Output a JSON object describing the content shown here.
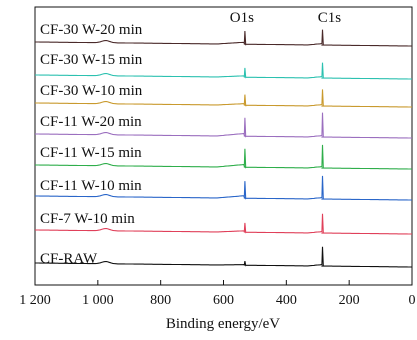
{
  "chart_data": {
    "type": "line",
    "title": "",
    "xlabel": "Binding energy/eV",
    "ylabel": "",
    "xlim": [
      1200,
      0
    ],
    "x_reversed": true,
    "grid": false,
    "x_ticks": [
      1200,
      1000,
      800,
      600,
      400,
      200,
      0
    ],
    "x_tick_labels": [
      "1 200",
      "1 000",
      "800",
      "600",
      "400",
      "200",
      "0"
    ],
    "annotations": [
      {
        "text": "O1s",
        "x": 532
      },
      {
        "text": "C1s",
        "x": 285
      }
    ],
    "series": [
      {
        "name": "CF-30 W-20 min",
        "color": "#4a2a2a",
        "c1s_peak": 0.55,
        "o1s_peak": 0.5
      },
      {
        "name": "CF-30 W-15 min",
        "color": "#2cc1b0",
        "c1s_peak": 0.55,
        "o1s_peak": 0.35
      },
      {
        "name": "CF-30 W-10 min",
        "color": "#c99a2e",
        "c1s_peak": 0.6,
        "o1s_peak": 0.4
      },
      {
        "name": "CF-11 W-20 min",
        "color": "#9b6fbf",
        "c1s_peak": 0.9,
        "o1s_peak": 0.7
      },
      {
        "name": "CF-11 W-15 min",
        "color": "#2fae4b",
        "c1s_peak": 0.85,
        "o1s_peak": 0.7
      },
      {
        "name": "CF-11 W-10 min",
        "color": "#2a66c9",
        "c1s_peak": 0.85,
        "o1s_peak": 0.65
      },
      {
        "name": "CF-7 W-10 min",
        "color": "#e0405a",
        "c1s_peak": 0.7,
        "o1s_peak": 0.35
      },
      {
        "name": "CF-RAW",
        "color": "#111111",
        "c1s_peak": 0.7,
        "o1s_peak": 0.15
      }
    ]
  }
}
